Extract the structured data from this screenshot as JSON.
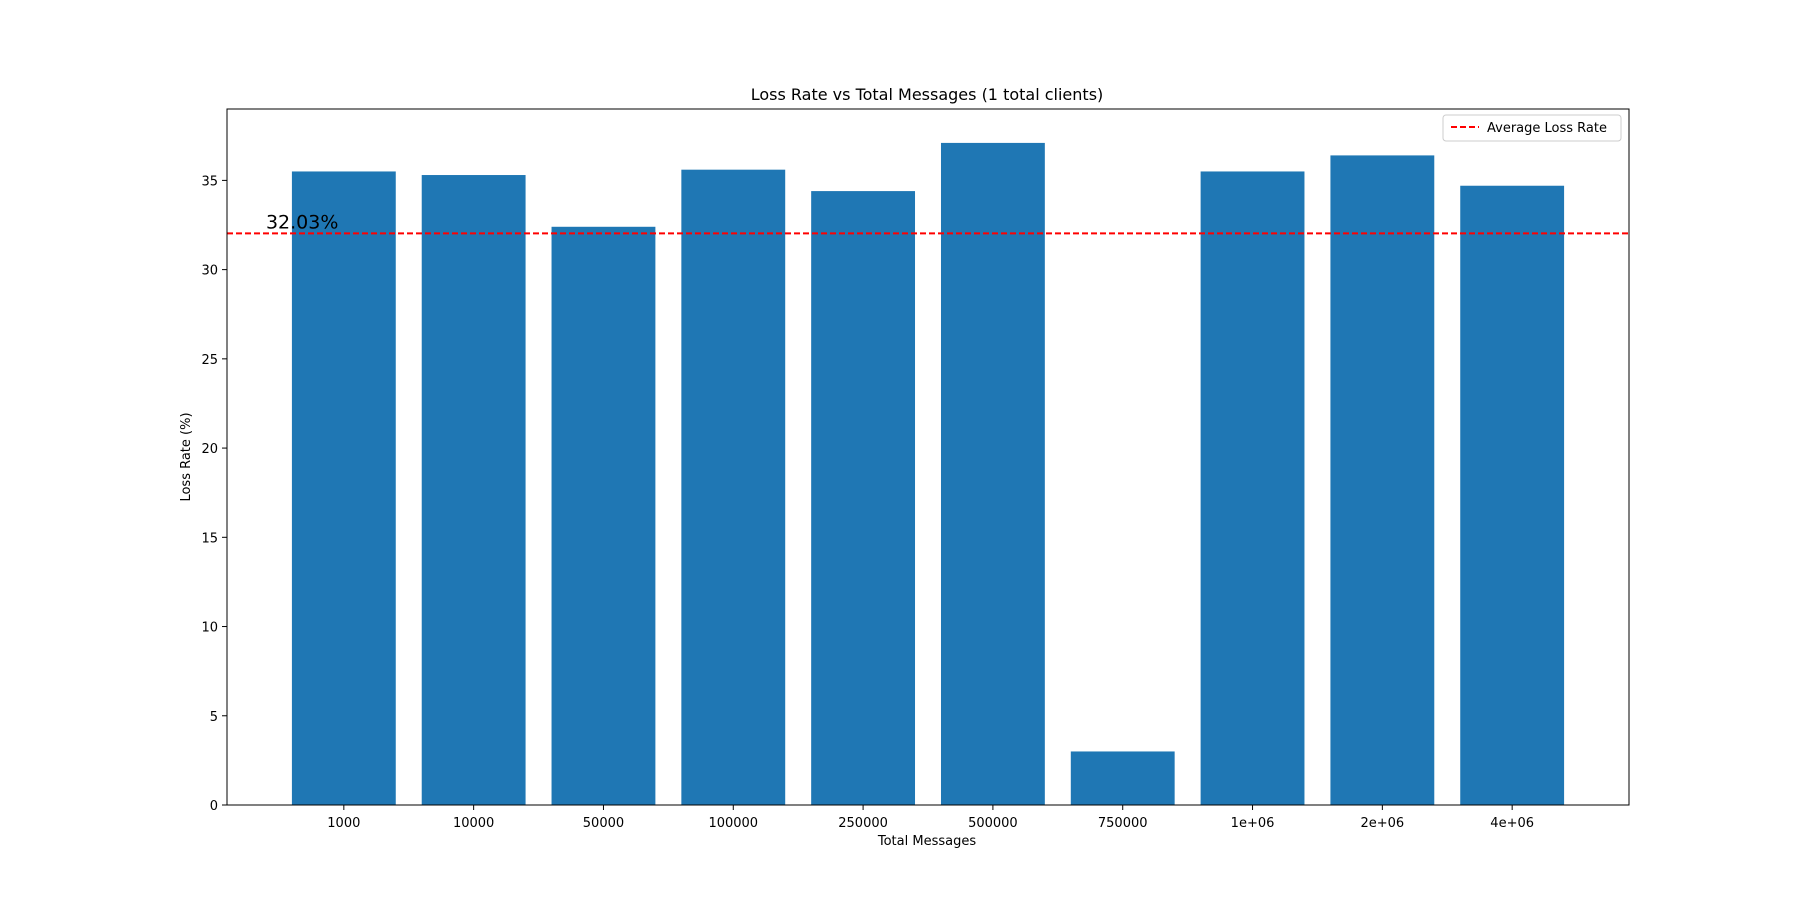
{
  "chart_data": {
    "type": "bar",
    "title": "Loss Rate vs Total Messages (1 total clients)",
    "xlabel": "Total Messages",
    "ylabel": "Loss Rate (%)",
    "categories": [
      "1000",
      "10000",
      "50000",
      "100000",
      "250000",
      "500000",
      "750000",
      "1e+06",
      "2e+06",
      "4e+06"
    ],
    "values": [
      35.5,
      35.3,
      32.4,
      35.6,
      34.4,
      37.1,
      3.0,
      35.5,
      36.4,
      34.7
    ],
    "ylim": [
      0,
      39
    ],
    "yticks": [
      0,
      5,
      10,
      15,
      20,
      25,
      30,
      35
    ],
    "average_line": {
      "value": 32.03,
      "label": "32.03%",
      "style": "dashed"
    },
    "legend": {
      "entries": [
        "Average Loss Rate"
      ],
      "position": "top-right"
    },
    "grid": false,
    "colors": {
      "bar": "#1f77b4",
      "average_line": "#ff0000"
    }
  }
}
